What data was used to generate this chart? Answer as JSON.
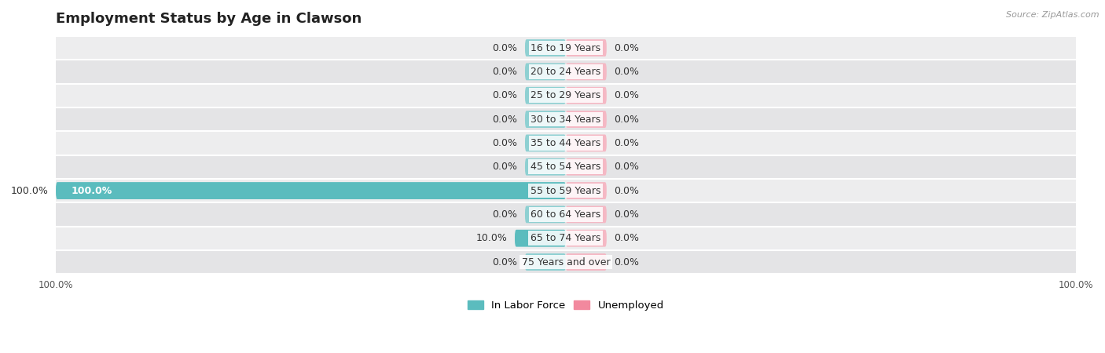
{
  "title": "Employment Status by Age in Clawson",
  "source": "Source: ZipAtlas.com",
  "categories": [
    "16 to 19 Years",
    "20 to 24 Years",
    "25 to 29 Years",
    "30 to 34 Years",
    "35 to 44 Years",
    "45 to 54 Years",
    "55 to 59 Years",
    "60 to 64 Years",
    "65 to 74 Years",
    "75 Years and over"
  ],
  "labor_force": [
    0.0,
    0.0,
    0.0,
    0.0,
    0.0,
    0.0,
    100.0,
    0.0,
    10.0,
    0.0
  ],
  "unemployed": [
    0.0,
    0.0,
    0.0,
    0.0,
    0.0,
    0.0,
    0.0,
    0.0,
    0.0,
    0.0
  ],
  "labor_force_color": "#5bbcbe",
  "labor_force_color_dim": "#8ed0d2",
  "unemployed_color": "#f2899e",
  "unemployed_color_dim": "#f5b8c4",
  "row_bg_even": "#ededee",
  "row_bg_odd": "#e4e4e6",
  "xlim": 100.0,
  "bar_stub": 8.0,
  "bar_height": 0.72,
  "legend_labor": "In Labor Force",
  "legend_unemployed": "Unemployed",
  "title_fontsize": 13,
  "label_fontsize": 9,
  "cat_fontsize": 9,
  "axis_label_fontsize": 8.5,
  "figsize": [
    14.06,
    4.5
  ],
  "dpi": 100
}
